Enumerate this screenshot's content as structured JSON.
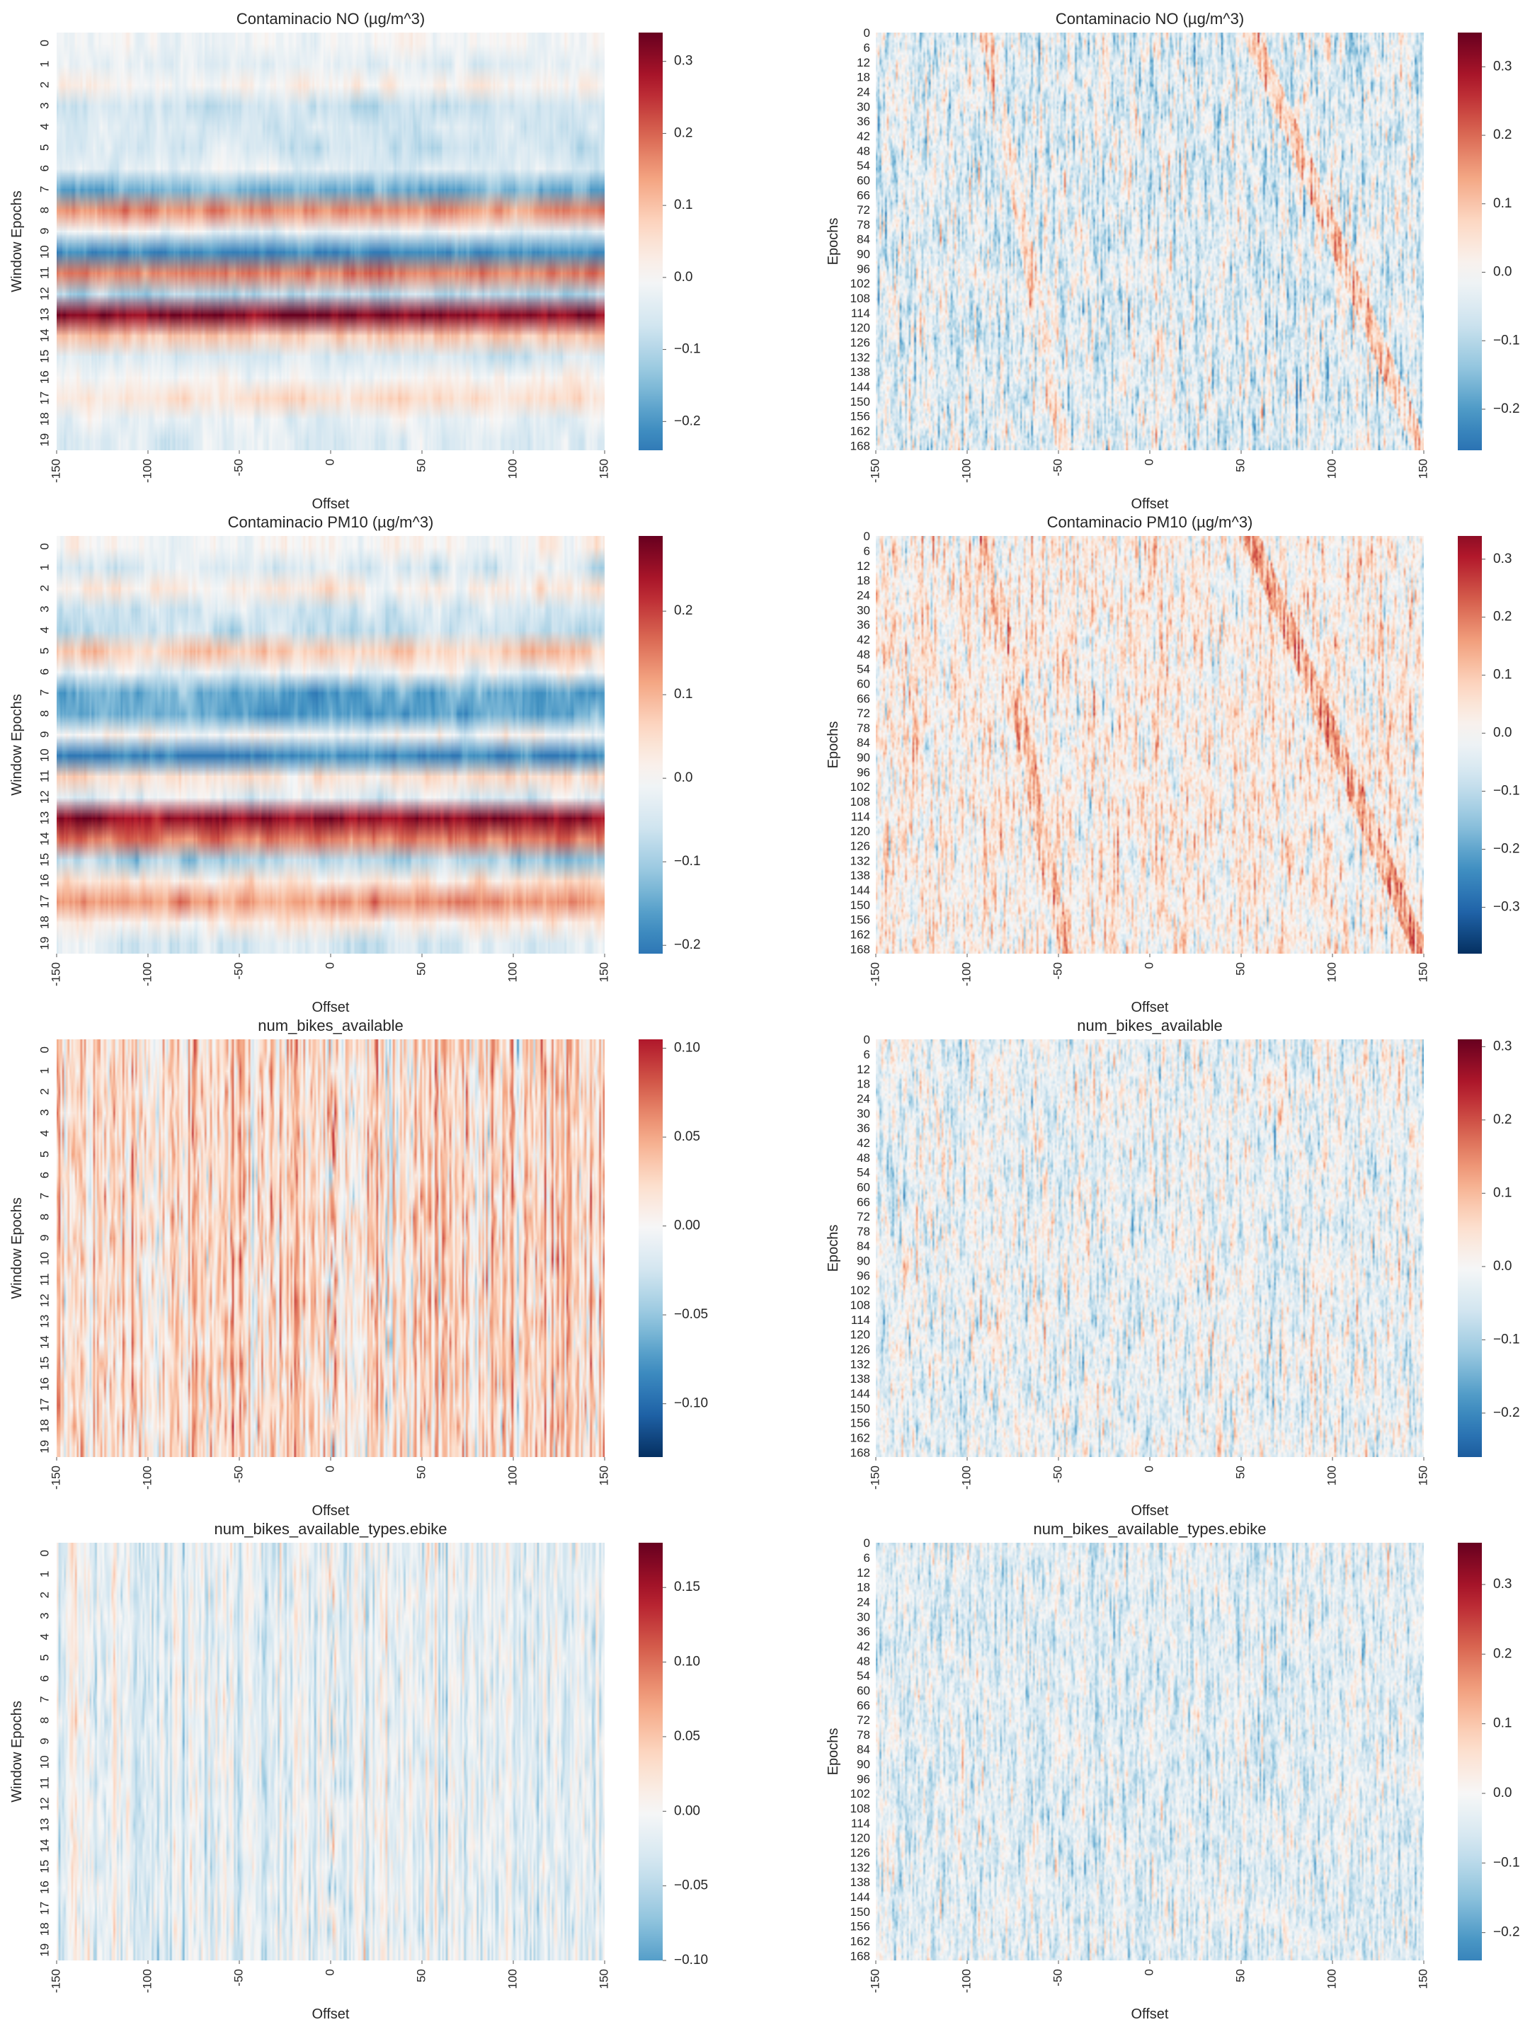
{
  "figure": {
    "colormap": "RdBu_r",
    "colors": {
      "low": "#0b3b6f",
      "mid": "#f7f7f7",
      "high": "#67001f"
    }
  },
  "chart_data": [
    {
      "type": "heatmap",
      "panel": "row1-left",
      "title": "Contaminacio NO (µg/m^3)",
      "xlabel": "Offset",
      "ylabel": "Window Epochs",
      "x_ticks": [
        -150,
        -100,
        -50,
        0,
        50,
        100,
        150
      ],
      "y_ticks": [
        "0",
        "1",
        "2",
        "3",
        "4",
        "5",
        "6",
        "7",
        "8",
        "9",
        "10",
        "11",
        "12",
        "13",
        "14",
        "15",
        "16",
        "17",
        "18",
        "19"
      ],
      "rows": 20,
      "colorbar_range": [
        -0.24,
        0.34
      ],
      "colorbar_ticks": [
        "0.3",
        "0.2",
        "0.1",
        "0.0",
        "−0.1",
        "−0.2"
      ],
      "pattern": "bands",
      "row_means": [
        0.0,
        -0.03,
        0.01,
        -0.07,
        -0.05,
        -0.06,
        -0.04,
        -0.16,
        0.15,
        -0.02,
        -0.22,
        0.18,
        -0.09,
        0.31,
        0.09,
        -0.06,
        0.0,
        0.05,
        -0.03,
        -0.04
      ],
      "noise": 0.03
    },
    {
      "type": "heatmap",
      "panel": "row1-right",
      "title": "Contaminacio NO (µg/m^3)",
      "xlabel": "Offset",
      "ylabel": "Epochs",
      "x_ticks": [
        -150,
        -100,
        -50,
        0,
        50,
        100,
        150
      ],
      "y_ticks": [
        "0",
        "6",
        "12",
        "18",
        "24",
        "30",
        "36",
        "42",
        "48",
        "54",
        "60",
        "66",
        "72",
        "78",
        "84",
        "90",
        "96",
        "102",
        "108",
        "114",
        "120",
        "126",
        "132",
        "138",
        "144",
        "150",
        "156",
        "162",
        "168"
      ],
      "rows": 170,
      "colorbar_range": [
        -0.26,
        0.35
      ],
      "colorbar_ticks": [
        "0.3",
        "0.2",
        "0.1",
        "0.0",
        "−0.1",
        "−0.2"
      ],
      "pattern": "diagonal",
      "base": -0.04,
      "noise": 0.11
    },
    {
      "type": "heatmap",
      "panel": "row2-left",
      "title": "Contaminacio PM10 (µg/m^3)",
      "xlabel": "Offset",
      "ylabel": "Window Epochs",
      "x_ticks": [
        -150,
        -100,
        -50,
        0,
        50,
        100,
        150
      ],
      "y_ticks": [
        "0",
        "1",
        "2",
        "3",
        "4",
        "5",
        "6",
        "7",
        "8",
        "9",
        "10",
        "11",
        "12",
        "13",
        "14",
        "15",
        "16",
        "17",
        "18",
        "19"
      ],
      "rows": 20,
      "colorbar_range": [
        -0.21,
        0.29
      ],
      "colorbar_ticks": [
        "0.2",
        "0.1",
        "0.0",
        "−0.1",
        "−0.2"
      ],
      "pattern": "bands",
      "row_means": [
        0.01,
        -0.04,
        0.02,
        -0.06,
        -0.07,
        0.07,
        -0.02,
        -0.15,
        -0.15,
        0.0,
        -0.19,
        0.05,
        -0.03,
        0.26,
        0.14,
        -0.09,
        0.04,
        0.13,
        0.02,
        -0.05
      ],
      "noise": 0.03
    },
    {
      "type": "heatmap",
      "panel": "row2-right",
      "title": "Contaminacio PM10 (µg/m^3)",
      "xlabel": "Offset",
      "ylabel": "Epochs",
      "x_ticks": [
        -150,
        -100,
        -50,
        0,
        50,
        100,
        150
      ],
      "y_ticks": [
        "0",
        "6",
        "12",
        "18",
        "24",
        "30",
        "36",
        "42",
        "48",
        "54",
        "60",
        "66",
        "72",
        "78",
        "84",
        "90",
        "96",
        "102",
        "108",
        "114",
        "120",
        "126",
        "132",
        "138",
        "144",
        "150",
        "156",
        "162",
        "168"
      ],
      "rows": 170,
      "colorbar_range": [
        -0.38,
        0.34
      ],
      "colorbar_ticks": [
        "0.3",
        "0.2",
        "0.1",
        "0.0",
        "−0.1",
        "−0.2",
        "−0.3"
      ],
      "pattern": "diagonal",
      "base": 0.02,
      "noise": 0.12
    },
    {
      "type": "heatmap",
      "panel": "row3-left",
      "title": "num_bikes_available",
      "xlabel": "Offset",
      "ylabel": "Window Epochs",
      "x_ticks": [
        -150,
        -100,
        -50,
        0,
        50,
        100,
        150
      ],
      "y_ticks": [
        "0",
        "1",
        "2",
        "3",
        "4",
        "5",
        "6",
        "7",
        "8",
        "9",
        "10",
        "11",
        "12",
        "13",
        "14",
        "15",
        "16",
        "17",
        "18",
        "19"
      ],
      "rows": 20,
      "colorbar_range": [
        -0.13,
        0.105
      ],
      "colorbar_ticks": [
        "0.10",
        "0.05",
        "0.00",
        "−0.05",
        "−0.10"
      ],
      "pattern": "stripes",
      "base": 0.02,
      "noise": 0.04
    },
    {
      "type": "heatmap",
      "panel": "row3-right",
      "title": "num_bikes_available",
      "xlabel": "Offset",
      "ylabel": "Epochs",
      "x_ticks": [
        -150,
        -100,
        -50,
        0,
        50,
        100,
        150
      ],
      "y_ticks": [
        "0",
        "6",
        "12",
        "18",
        "24",
        "30",
        "36",
        "42",
        "48",
        "54",
        "60",
        "66",
        "72",
        "78",
        "84",
        "90",
        "96",
        "102",
        "108",
        "114",
        "120",
        "126",
        "132",
        "138",
        "144",
        "150",
        "156",
        "162",
        "168"
      ],
      "rows": 170,
      "colorbar_range": [
        -0.26,
        0.31
      ],
      "colorbar_ticks": [
        "0.3",
        "0.2",
        "0.1",
        "0.0",
        "−0.1",
        "−0.2"
      ],
      "pattern": "noise",
      "base": -0.02,
      "noise": 0.09
    },
    {
      "type": "heatmap",
      "panel": "row4-left",
      "title": "num_bikes_available_types.ebike",
      "xlabel": "Offset",
      "ylabel": "Window Epochs",
      "x_ticks": [
        -150,
        -100,
        -50,
        0,
        50,
        100,
        150
      ],
      "y_ticks": [
        "0",
        "1",
        "2",
        "3",
        "4",
        "5",
        "6",
        "7",
        "8",
        "9",
        "10",
        "11",
        "12",
        "13",
        "14",
        "15",
        "16",
        "17",
        "18",
        "19"
      ],
      "rows": 20,
      "colorbar_range": [
        -0.1,
        0.18
      ],
      "colorbar_ticks": [
        "0.15",
        "0.10",
        "0.05",
        "0.00",
        "−0.05",
        "−0.10"
      ],
      "pattern": "stripes",
      "base": -0.015,
      "noise": 0.035
    },
    {
      "type": "heatmap",
      "panel": "row4-right",
      "title": "num_bikes_available_types.ebike",
      "xlabel": "Offset",
      "ylabel": "Epochs",
      "x_ticks": [
        -150,
        -100,
        -50,
        0,
        50,
        100,
        150
      ],
      "y_ticks": [
        "0",
        "6",
        "12",
        "18",
        "24",
        "30",
        "36",
        "42",
        "48",
        "54",
        "60",
        "66",
        "72",
        "78",
        "84",
        "90",
        "96",
        "102",
        "108",
        "114",
        "120",
        "126",
        "132",
        "138",
        "144",
        "150",
        "156",
        "162",
        "168"
      ],
      "rows": 170,
      "colorbar_range": [
        -0.24,
        0.36
      ],
      "colorbar_ticks": [
        "0.3",
        "0.2",
        "0.1",
        "0.0",
        "−0.1",
        "−0.2"
      ],
      "pattern": "noise",
      "base": -0.04,
      "noise": 0.09
    }
  ]
}
